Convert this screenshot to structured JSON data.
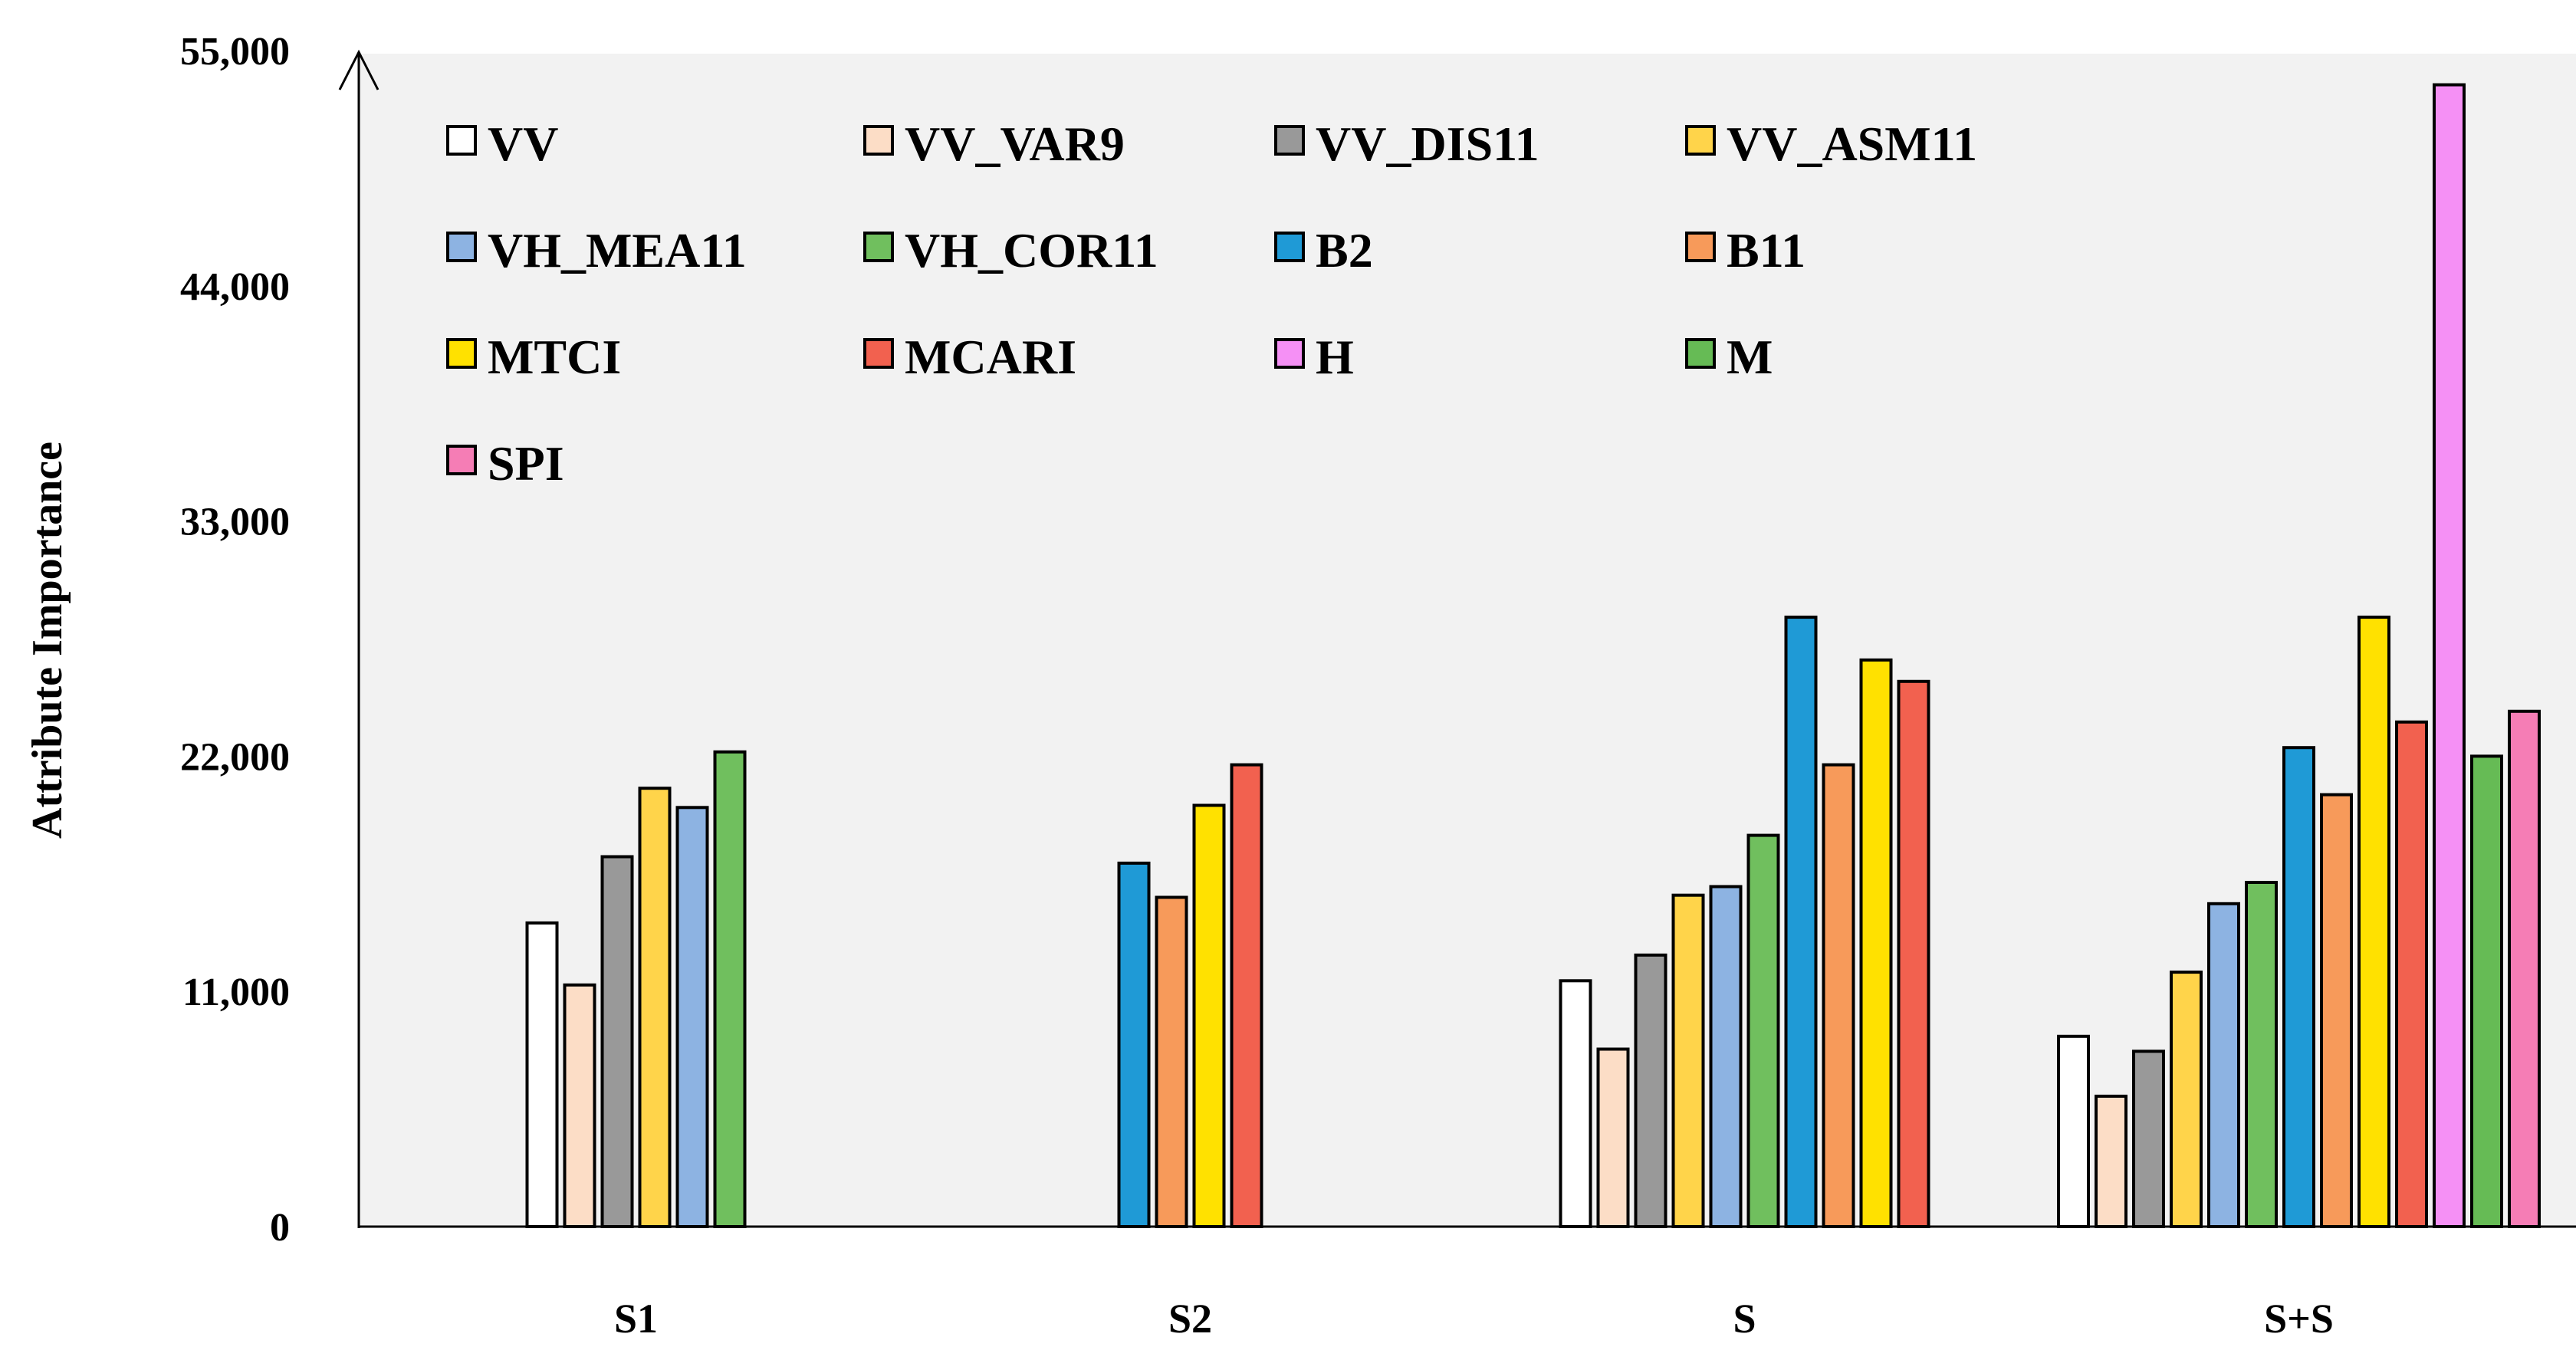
{
  "chart_data": {
    "type": "bar",
    "title": "",
    "xlabel": "",
    "ylabel": "Attribute Importance",
    "ylim": [
      0,
      55000
    ],
    "yticks": [
      0,
      11000,
      22000,
      33000,
      44000,
      55000
    ],
    "ytick_labels": [
      "0",
      "11,000",
      "22,000",
      "33,000",
      "44,000",
      "55,000"
    ],
    "grid": false,
    "legend_position": "top-left",
    "categories": [
      "S1",
      "S2",
      "S",
      "S+S"
    ],
    "series": [
      {
        "name": "VV",
        "color": "#FFFFFF",
        "values": [
          14200,
          null,
          11500,
          8900
        ]
      },
      {
        "name": "VV_VAR9",
        "color": "#FCDDC6",
        "values": [
          11300,
          null,
          8300,
          6100
        ]
      },
      {
        "name": "VV_DIS11",
        "color": "#999999",
        "values": [
          17300,
          null,
          12700,
          8200
        ]
      },
      {
        "name": "VV_ASM11",
        "color": "#FFD44A",
        "values": [
          20500,
          null,
          15500,
          11900
        ]
      },
      {
        "name": "VH_MEA11",
        "color": "#8DB3E2",
        "values": [
          19600,
          null,
          15900,
          15100
        ]
      },
      {
        "name": "VH_COR11",
        "color": "#70BF5E",
        "values": [
          22200,
          null,
          18300,
          16100
        ]
      },
      {
        "name": "B2",
        "color": "#1F9AD6",
        "values": [
          null,
          17000,
          28500,
          22400
        ]
      },
      {
        "name": "B11",
        "color": "#F79A5A",
        "values": [
          null,
          15400,
          21600,
          20200
        ]
      },
      {
        "name": "MTCI",
        "color": "#FFE100",
        "values": [
          null,
          19700,
          26500,
          28500
        ]
      },
      {
        "name": "MCARI",
        "color": "#F2614F",
        "values": [
          null,
          21600,
          25500,
          23600
        ]
      },
      {
        "name": "H",
        "color": "#F590F5",
        "values": [
          null,
          null,
          null,
          53400
        ]
      },
      {
        "name": "M",
        "color": "#66BB55",
        "values": [
          null,
          null,
          null,
          22000
        ]
      },
      {
        "name": "SPI",
        "color": "#F57DB5",
        "values": [
          null,
          null,
          null,
          24100
        ]
      }
    ]
  }
}
